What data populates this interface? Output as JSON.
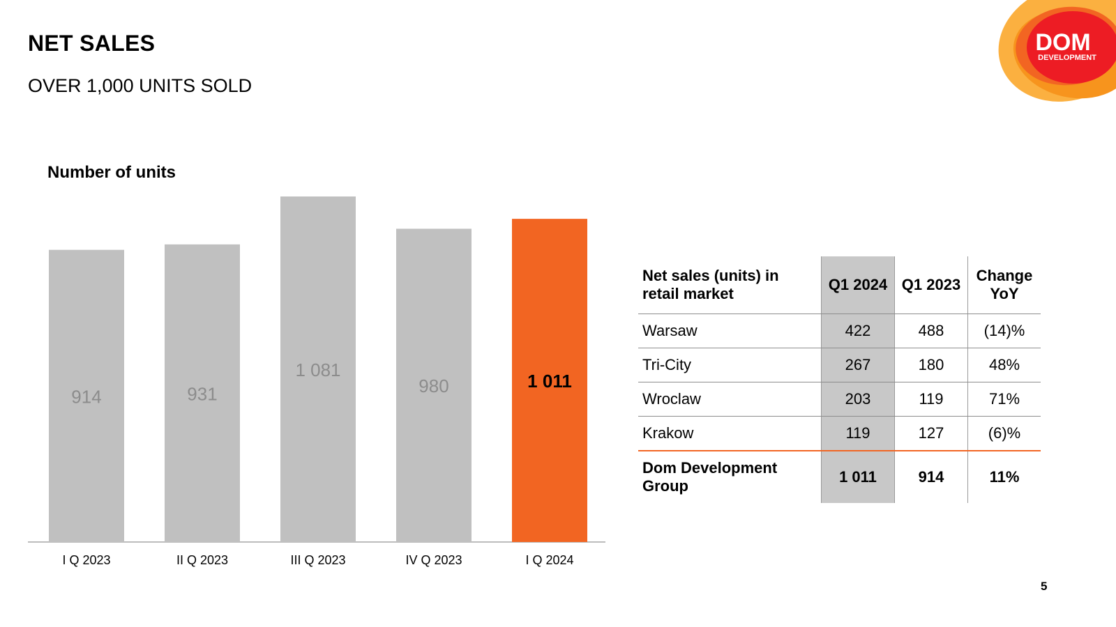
{
  "header": {
    "title": "NET SALES",
    "subtitle": "OVER 1,000 UNITS SOLD",
    "page_number": "5"
  },
  "logo": {
    "line1": "DOM",
    "line2": "DEVELOPMENT"
  },
  "colors": {
    "bar_default": "#c0c0c0",
    "bar_highlight": "#f26522",
    "label_default": "#8c8c8c",
    "label_highlight": "#000000",
    "axis": "#a6a6a6"
  },
  "chart_data": {
    "type": "bar",
    "title": "Number of units",
    "xlabel": "",
    "ylabel": "",
    "categories": [
      "I Q 2023",
      "II Q 2023",
      "III Q 2023",
      "IV Q 2023",
      "I Q 2024"
    ],
    "values": [
      914,
      931,
      1081,
      980,
      1011
    ],
    "value_labels": [
      "914",
      "931",
      "1 081",
      "980",
      "1 011"
    ],
    "highlight_index": 4,
    "ylim": [
      0,
      1081
    ],
    "grid": false,
    "legend": "none"
  },
  "table": {
    "headers": {
      "label": "Net sales (units) in retail market",
      "q1_2024": "Q1 2024",
      "q1_2023": "Q1 2023",
      "change": "Change YoY"
    },
    "rows": [
      {
        "name": "Warsaw",
        "q1_2024": "422",
        "q1_2023": "488",
        "change": "(14)%"
      },
      {
        "name": "Tri-City",
        "q1_2024": "267",
        "q1_2023": "180",
        "change": "48%"
      },
      {
        "name": "Wroclaw",
        "q1_2024": "203",
        "q1_2023": "119",
        "change": "71%"
      },
      {
        "name": "Krakow",
        "q1_2024": "119",
        "q1_2023": "127",
        "change": "(6)%"
      }
    ],
    "total": {
      "name": "Dom Development Group",
      "q1_2024": "1 011",
      "q1_2023": "914",
      "change": "11%"
    }
  }
}
